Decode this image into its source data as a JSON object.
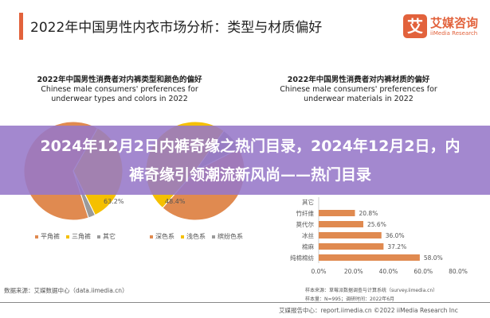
{
  "header": {
    "title": "2022年中国男性内衣市场分析：类型与材质偏好",
    "logo_icon_text": "艾",
    "logo_cn": "艾媒咨询",
    "logo_en": "iiMedia Research"
  },
  "left_chart": {
    "title_cn": "2022年中国男性消费者对内裤类型和颜色的偏好",
    "title_en1": "Chinese male consumers' preferences for",
    "title_en2": "underwear types and colors in 2022"
  },
  "right_chart": {
    "title_cn": "2022年中国男性消费者对内裤材质的偏好",
    "title_en1": "Chinese male consumers' preferences for",
    "title_en2": "underwear materials in 2022"
  },
  "chart_data": [
    {
      "type": "pie",
      "title": "内裤类型",
      "labels": [
        "平角裤",
        "三角裤",
        "其它"
      ],
      "values": [
        63.2,
        null,
        null
      ],
      "value_labels": [
        "63.2%"
      ],
      "colors": [
        "#e08a50",
        "#f5c000",
        "#9a9a9a"
      ]
    },
    {
      "type": "pie",
      "title": "内裤颜色",
      "labels": [
        "深色系",
        "浅色系",
        "缤纷色系"
      ],
      "values": [
        null,
        48.4,
        null
      ],
      "value_labels": [
        "48.4%"
      ],
      "colors": [
        "#e08a50",
        "#f5c000",
        "#9a9a9a"
      ]
    },
    {
      "type": "bar",
      "orientation": "horizontal",
      "categories": [
        "其它",
        "竹纤维",
        "莫代尔",
        "冰丝",
        "棉麻",
        "纯棉棉纺"
      ],
      "values": [
        null,
        20.8,
        25.6,
        36.0,
        37.2,
        58.0
      ],
      "value_labels": [
        "",
        "20.8%",
        "25.6%",
        "36.0%",
        "37.2%",
        "58.0%"
      ],
      "xticks": [
        "0.0%",
        "20.0%",
        "40.0%",
        "60.0%",
        "80.0%"
      ],
      "xlim": [
        0,
        80
      ],
      "color": "#e08a50"
    }
  ],
  "footer": {
    "source_left": "数据来源：艾媒数据中心（data.iimedia.cn）",
    "sample_source": "样本来源：草莓派数据调查与计算系统（survey.iimedia.cn）",
    "sample_size": "样本量：N=995；调研时间：2022年6月",
    "report": "艾媒报告中心：report.iimedia.cn  ©2022  iiMedia Research Inc"
  },
  "overlay": {
    "headline": "2024年12月2日内裤奇缘之热门目录，2024年12月2日，内裤奇缘引领潮流新风尚——热门目录"
  }
}
